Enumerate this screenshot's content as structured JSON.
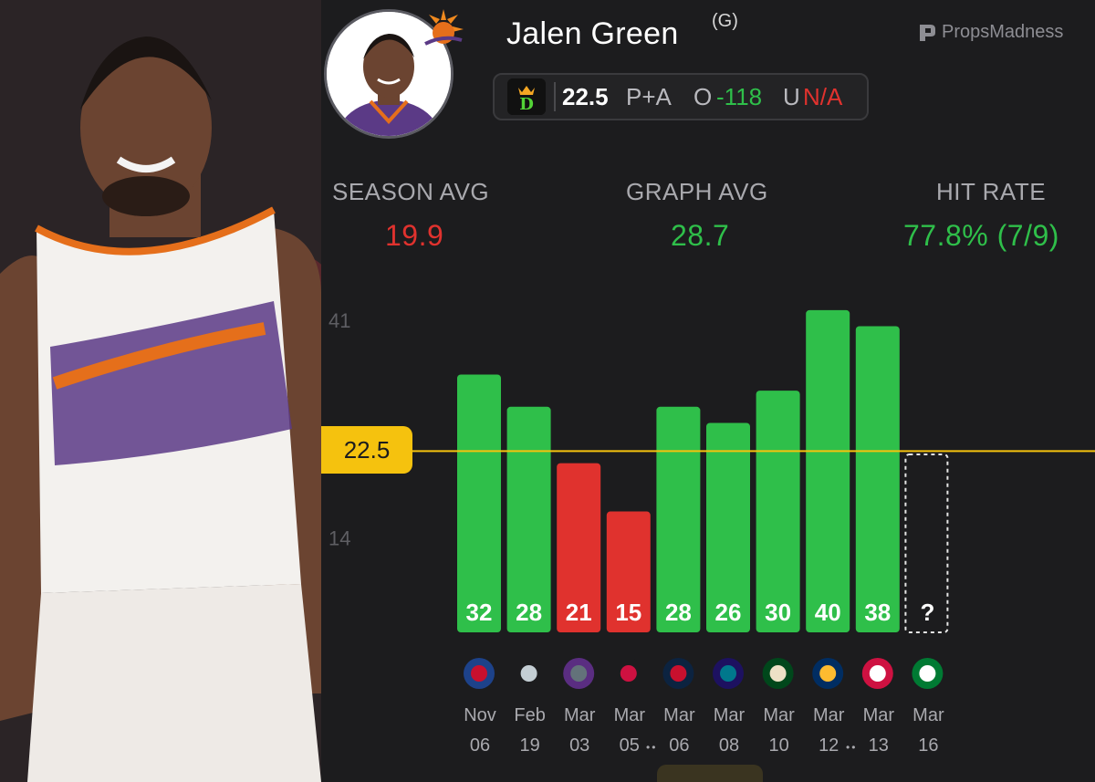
{
  "player": {
    "name": "Jalen Green",
    "position": "(G)"
  },
  "brand": {
    "name": "PropsMadness"
  },
  "prop": {
    "book_icon": "draftkings-icon",
    "line": "22.5",
    "stat": "P+A",
    "over_label": "O",
    "over_value": "-118",
    "under_label": "U",
    "under_value": "N/A"
  },
  "stats": {
    "season_avg_label": "SEASON AVG",
    "season_avg_value": "19.9",
    "graph_avg_label": "GRAPH AVG",
    "graph_avg_value": "28.7",
    "hit_rate_label": "HIT RATE",
    "hit_rate_value": "77.8% (7/9)"
  },
  "colors": {
    "hit": "#2fbf4a",
    "miss": "#e0322e",
    "line": "#f5c20e",
    "label": "#a9a9ae",
    "over": "#2fbf4a",
    "under": "#e0322e"
  },
  "chart_data": {
    "type": "bar",
    "title": "",
    "xlabel": "",
    "ylabel": "",
    "ylim": [
      0,
      41
    ],
    "yticks": [
      0,
      14,
      27,
      41
    ],
    "threshold": 22.5,
    "threshold_label": "22.5",
    "categories": [
      "Nov 06",
      "Feb 19",
      "Mar 03",
      "Mar 05",
      "Mar 06",
      "Mar 08",
      "Mar 10",
      "Mar 12",
      "Mar 13",
      "Mar 16"
    ],
    "values": [
      32,
      28,
      21,
      15,
      28,
      26,
      30,
      40,
      38,
      null
    ],
    "value_labels": [
      "32",
      "28",
      "21",
      "15",
      "28",
      "26",
      "30",
      "40",
      "38",
      "?"
    ],
    "opponents": [
      "clippers-icon",
      "spurs-icon",
      "kings-icon",
      "bulls-icon",
      "pelicans-icon",
      "hornets-icon",
      "bucks-icon",
      "pacers-icon",
      "raptors-icon",
      "celtics-icon"
    ],
    "months": [
      "Nov",
      "Feb",
      "Mar",
      "Mar",
      "Mar",
      "Mar",
      "Mar",
      "Mar",
      "Mar",
      "Mar"
    ],
    "days": [
      "06",
      "19",
      "03",
      "05",
      "06",
      "08",
      "10",
      "12",
      "13",
      "16"
    ],
    "pending_label": "?",
    "grid": false,
    "legend": "none"
  }
}
